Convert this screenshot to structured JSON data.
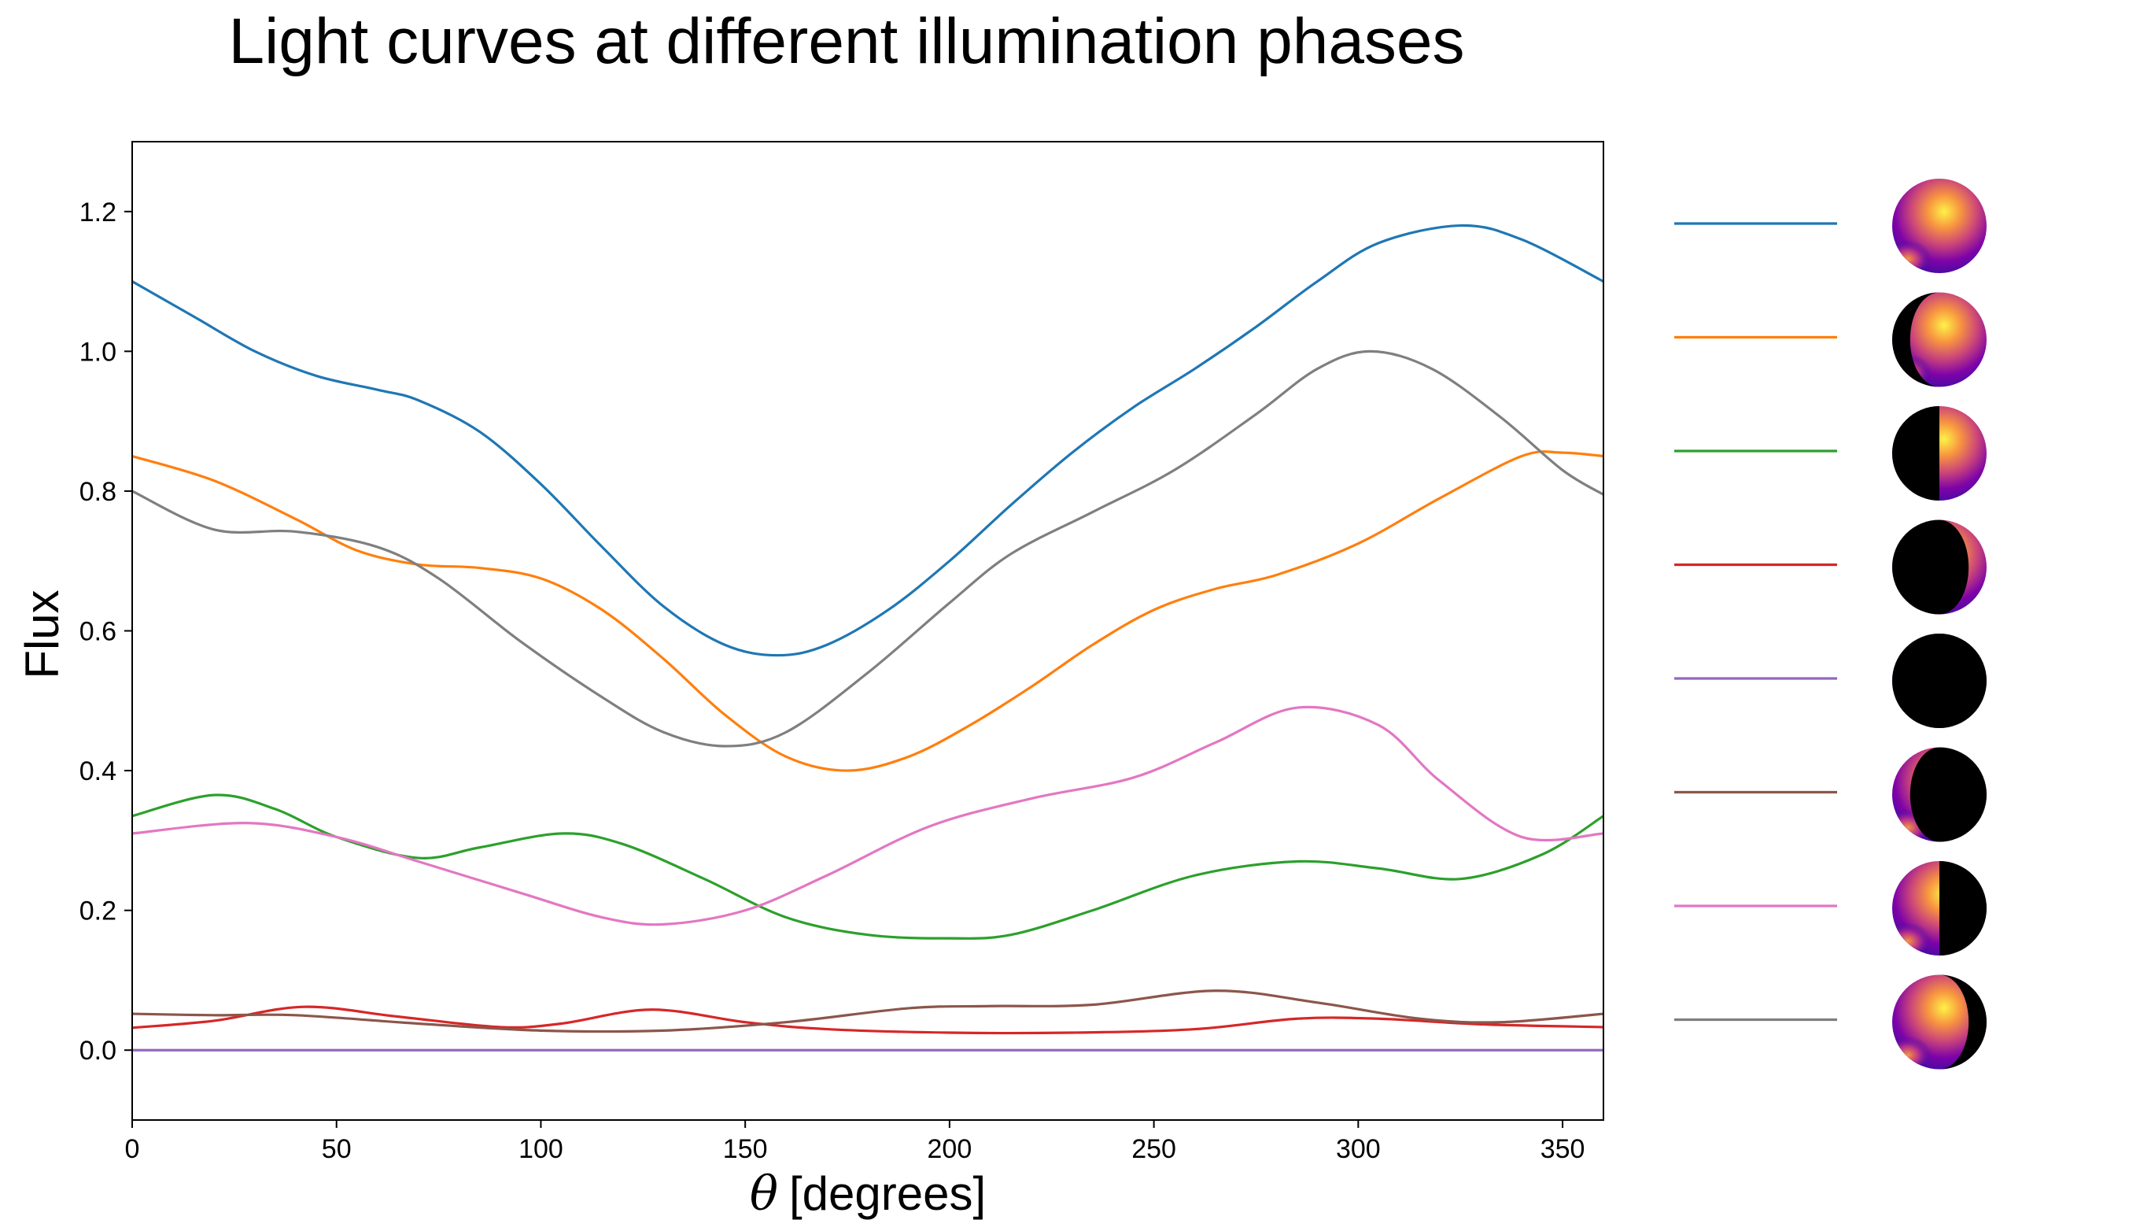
{
  "chart_data": {
    "type": "line",
    "title": "Light curves at different illumination phases",
    "xlabel": "θ [degrees]",
    "xlabel_symbol": "θ",
    "xlabel_unit": "[degrees]",
    "ylabel": "Flux",
    "xlim": [
      0,
      360
    ],
    "ylim": [
      -0.1,
      1.3
    ],
    "xticks": [
      0,
      50,
      100,
      150,
      200,
      250,
      300,
      350
    ],
    "xtick_labels": [
      "0",
      "50",
      "100",
      "150",
      "200",
      "250",
      "300",
      "350"
    ],
    "yticks": [
      0.0,
      0.2,
      0.4,
      0.6,
      0.8,
      1.0,
      1.2
    ],
    "ytick_labels": [
      "0.0",
      "0.2",
      "0.4",
      "0.6",
      "0.8",
      "1.0",
      "1.2"
    ],
    "grid": false,
    "legend_position": "right",
    "series": [
      {
        "color": "#1f77b4",
        "phase_illumination": "full",
        "lit_side": "both",
        "points": [
          [
            0,
            1.1
          ],
          [
            15,
            1.05
          ],
          [
            30,
            1.0
          ],
          [
            45,
            0.965
          ],
          [
            60,
            0.945
          ],
          [
            70,
            0.93
          ],
          [
            85,
            0.885
          ],
          [
            100,
            0.81
          ],
          [
            115,
            0.72
          ],
          [
            130,
            0.635
          ],
          [
            145,
            0.58
          ],
          [
            158,
            0.565
          ],
          [
            170,
            0.58
          ],
          [
            185,
            0.63
          ],
          [
            200,
            0.7
          ],
          [
            215,
            0.78
          ],
          [
            230,
            0.855
          ],
          [
            245,
            0.92
          ],
          [
            260,
            0.975
          ],
          [
            275,
            1.035
          ],
          [
            290,
            1.1
          ],
          [
            305,
            1.155
          ],
          [
            325,
            1.18
          ],
          [
            340,
            1.16
          ],
          [
            360,
            1.1
          ]
        ]
      },
      {
        "color": "#ff7f0e",
        "phase_illumination": "gibbous",
        "lit_side": "right",
        "points": [
          [
            0,
            0.85
          ],
          [
            20,
            0.815
          ],
          [
            40,
            0.76
          ],
          [
            55,
            0.715
          ],
          [
            70,
            0.695
          ],
          [
            85,
            0.69
          ],
          [
            100,
            0.675
          ],
          [
            115,
            0.63
          ],
          [
            130,
            0.56
          ],
          [
            145,
            0.48
          ],
          [
            160,
            0.42
          ],
          [
            175,
            0.4
          ],
          [
            190,
            0.42
          ],
          [
            205,
            0.465
          ],
          [
            220,
            0.52
          ],
          [
            235,
            0.58
          ],
          [
            250,
            0.63
          ],
          [
            265,
            0.66
          ],
          [
            280,
            0.68
          ],
          [
            300,
            0.725
          ],
          [
            320,
            0.79
          ],
          [
            340,
            0.85
          ],
          [
            350,
            0.855
          ],
          [
            360,
            0.85
          ]
        ]
      },
      {
        "color": "#2ca02c",
        "phase_illumination": "quarter",
        "lit_side": "right",
        "points": [
          [
            0,
            0.335
          ],
          [
            20,
            0.365
          ],
          [
            35,
            0.345
          ],
          [
            50,
            0.305
          ],
          [
            70,
            0.275
          ],
          [
            85,
            0.29
          ],
          [
            105,
            0.31
          ],
          [
            120,
            0.295
          ],
          [
            140,
            0.245
          ],
          [
            160,
            0.19
          ],
          [
            180,
            0.165
          ],
          [
            200,
            0.16
          ],
          [
            215,
            0.165
          ],
          [
            235,
            0.2
          ],
          [
            260,
            0.25
          ],
          [
            285,
            0.27
          ],
          [
            305,
            0.26
          ],
          [
            325,
            0.245
          ],
          [
            345,
            0.28
          ],
          [
            360,
            0.335
          ]
        ]
      },
      {
        "color": "#d62728",
        "phase_illumination": "crescent",
        "lit_side": "right",
        "points": [
          [
            0,
            0.032
          ],
          [
            20,
            0.042
          ],
          [
            42,
            0.062
          ],
          [
            65,
            0.048
          ],
          [
            90,
            0.033
          ],
          [
            105,
            0.038
          ],
          [
            127,
            0.058
          ],
          [
            150,
            0.04
          ],
          [
            170,
            0.03
          ],
          [
            200,
            0.025
          ],
          [
            230,
            0.025
          ],
          [
            260,
            0.03
          ],
          [
            285,
            0.045
          ],
          [
            305,
            0.045
          ],
          [
            330,
            0.037
          ],
          [
            360,
            0.033
          ]
        ]
      },
      {
        "color": "#9467bd",
        "phase_illumination": "new",
        "lit_side": "none",
        "points": [
          [
            0,
            0.0
          ],
          [
            360,
            0.0
          ]
        ]
      },
      {
        "color": "#8c564b",
        "phase_illumination": "crescent",
        "lit_side": "left",
        "points": [
          [
            0,
            0.052
          ],
          [
            20,
            0.05
          ],
          [
            40,
            0.05
          ],
          [
            70,
            0.038
          ],
          [
            100,
            0.028
          ],
          [
            130,
            0.028
          ],
          [
            160,
            0.04
          ],
          [
            190,
            0.06
          ],
          [
            210,
            0.063
          ],
          [
            235,
            0.065
          ],
          [
            265,
            0.085
          ],
          [
            290,
            0.068
          ],
          [
            315,
            0.045
          ],
          [
            335,
            0.04
          ],
          [
            360,
            0.052
          ]
        ]
      },
      {
        "color": "#e377c2",
        "phase_illumination": "quarter",
        "lit_side": "left",
        "points": [
          [
            0,
            0.31
          ],
          [
            28,
            0.325
          ],
          [
            50,
            0.305
          ],
          [
            70,
            0.27
          ],
          [
            95,
            0.225
          ],
          [
            115,
            0.19
          ],
          [
            130,
            0.18
          ],
          [
            150,
            0.2
          ],
          [
            170,
            0.25
          ],
          [
            195,
            0.32
          ],
          [
            220,
            0.36
          ],
          [
            245,
            0.39
          ],
          [
            265,
            0.44
          ],
          [
            285,
            0.49
          ],
          [
            305,
            0.465
          ],
          [
            320,
            0.385
          ],
          [
            340,
            0.305
          ],
          [
            360,
            0.31
          ]
        ]
      },
      {
        "color": "#7f7f7f",
        "phase_illumination": "gibbous",
        "lit_side": "left",
        "points": [
          [
            0,
            0.8
          ],
          [
            20,
            0.745
          ],
          [
            40,
            0.742
          ],
          [
            60,
            0.72
          ],
          [
            75,
            0.675
          ],
          [
            95,
            0.585
          ],
          [
            115,
            0.505
          ],
          [
            130,
            0.455
          ],
          [
            145,
            0.435
          ],
          [
            160,
            0.455
          ],
          [
            180,
            0.54
          ],
          [
            200,
            0.64
          ],
          [
            215,
            0.71
          ],
          [
            235,
            0.77
          ],
          [
            255,
            0.83
          ],
          [
            275,
            0.91
          ],
          [
            290,
            0.975
          ],
          [
            303,
            1.0
          ],
          [
            318,
            0.975
          ],
          [
            335,
            0.905
          ],
          [
            350,
            0.83
          ],
          [
            360,
            0.795
          ]
        ]
      }
    ]
  }
}
